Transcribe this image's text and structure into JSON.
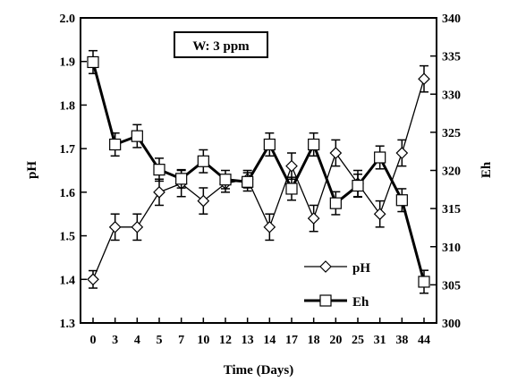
{
  "chart_data": {
    "type": "line",
    "annotation": "W: 3 ppm",
    "xlabel": "Time (Days)",
    "ylabel": "pH",
    "y2label": "Eh",
    "categories": [
      "0",
      "3",
      "4",
      "5",
      "7",
      "10",
      "12",
      "13",
      "14",
      "17",
      "18",
      "20",
      "25",
      "31",
      "38",
      "44"
    ],
    "ylim": [
      1.3,
      2.0
    ],
    "y2lim": [
      300,
      340
    ],
    "yticks": [
      "1.3",
      "1.4",
      "1.5",
      "1.6",
      "1.7",
      "1.8",
      "1.9",
      "2.0"
    ],
    "y2ticks": [
      "300",
      "305",
      "310",
      "315",
      "320",
      "325",
      "330",
      "335",
      "340"
    ],
    "legend_position": "bottom-right",
    "grid": false,
    "series": [
      {
        "name": "pH",
        "axis": "left",
        "marker": "diamond",
        "color": "#000000",
        "values": [
          1.4,
          1.52,
          1.52,
          1.6,
          1.62,
          1.58,
          1.62,
          1.63,
          1.52,
          1.66,
          1.54,
          1.69,
          1.62,
          1.55,
          1.69,
          1.86
        ],
        "errors": [
          0.02,
          0.03,
          0.03,
          0.03,
          0.03,
          0.03,
          0.02,
          0.02,
          0.03,
          0.03,
          0.03,
          0.03,
          0.03,
          0.03,
          0.03,
          0.03
        ]
      },
      {
        "name": "Eh",
        "axis": "right",
        "marker": "square",
        "color": "#000000",
        "values": [
          334.2,
          323.4,
          324.5,
          320.1,
          318.9,
          321.2,
          318.8,
          318.5,
          323.4,
          317.6,
          323.4,
          315.7,
          318.0,
          321.7,
          316.1,
          305.4
        ],
        "errors": [
          1.5,
          1.5,
          1.5,
          1.5,
          1.2,
          1.5,
          1.2,
          1.2,
          1.5,
          1.5,
          1.5,
          1.5,
          1.5,
          1.5,
          1.5,
          1.5
        ]
      }
    ]
  }
}
